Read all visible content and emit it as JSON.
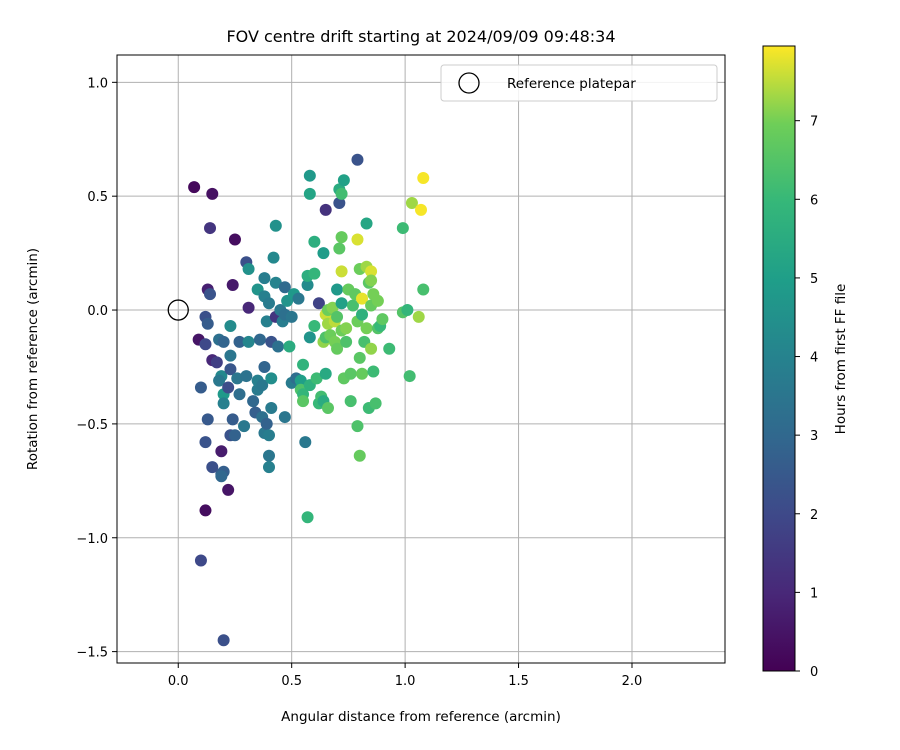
{
  "chart_data": {
    "type": "scatter",
    "title": "FOV centre drift starting at 2024/09/09 09:48:34",
    "xlabel": "Angular distance from reference (arcmin)",
    "ylabel": "Rotation from reference (arcmin)",
    "xlim": [
      -0.27,
      2.41
    ],
    "ylim": [
      -1.55,
      1.12
    ],
    "xticks": [
      0.0,
      0.5,
      1.0,
      1.5,
      2.0
    ],
    "xtick_labels": [
      "0.0",
      "0.5",
      "1.0",
      "1.5",
      "2.0"
    ],
    "yticks": [
      -1.5,
      -1.0,
      -0.5,
      0.0,
      0.5,
      1.0
    ],
    "ytick_labels": [
      "−1.5",
      "−1.0",
      "−0.5",
      "0.0",
      "0.5",
      "1.0"
    ],
    "grid": true,
    "legend": {
      "position": "top-right",
      "entries": [
        "Reference platepar"
      ]
    },
    "reference_point": {
      "x": 0.0,
      "y": 0.0,
      "marker": "open-circle"
    },
    "colorbar": {
      "label": "Hours from first FF file",
      "colormap": "viridis",
      "range": [
        0,
        7.95
      ],
      "ticks": [
        0,
        1,
        2,
        3,
        4,
        5,
        6,
        7
      ],
      "tick_labels": [
        "0",
        "1",
        "2",
        "3",
        "4",
        "5",
        "6",
        "7"
      ]
    },
    "points": [
      {
        "x": 0.07,
        "y": 0.54,
        "c": 0.2
      },
      {
        "x": 0.15,
        "y": 0.51,
        "c": 0.4
      },
      {
        "x": 0.14,
        "y": 0.36,
        "c": 1.4
      },
      {
        "x": 0.25,
        "y": 0.31,
        "c": 0.3
      },
      {
        "x": 0.24,
        "y": 0.11,
        "c": 0.6
      },
      {
        "x": 0.13,
        "y": 0.09,
        "c": 0.8
      },
      {
        "x": 0.14,
        "y": 0.07,
        "c": 2.3
      },
      {
        "x": 0.12,
        "y": -0.03,
        "c": 2.2
      },
      {
        "x": 0.13,
        "y": -0.06,
        "c": 2.6
      },
      {
        "x": 0.09,
        "y": -0.13,
        "c": 0.5
      },
      {
        "x": 0.12,
        "y": -0.15,
        "c": 2.0
      },
      {
        "x": 0.15,
        "y": -0.22,
        "c": 1.0
      },
      {
        "x": 0.17,
        "y": -0.23,
        "c": 1.7
      },
      {
        "x": 0.1,
        "y": -0.34,
        "c": 2.6
      },
      {
        "x": 0.13,
        "y": -0.48,
        "c": 2.5
      },
      {
        "x": 0.12,
        "y": -0.58,
        "c": 2.3
      },
      {
        "x": 0.15,
        "y": -0.69,
        "c": 2.2
      },
      {
        "x": 0.19,
        "y": -0.62,
        "c": 0.7
      },
      {
        "x": 0.19,
        "y": -0.72,
        "c": 2.6
      },
      {
        "x": 0.2,
        "y": -0.71,
        "c": 2.7
      },
      {
        "x": 0.19,
        "y": -0.73,
        "c": 3.0
      },
      {
        "x": 0.22,
        "y": -0.79,
        "c": 0.5
      },
      {
        "x": 0.12,
        "y": -0.88,
        "c": 0.3
      },
      {
        "x": 0.1,
        "y": -1.1,
        "c": 2.0
      },
      {
        "x": 0.2,
        "y": -1.45,
        "c": 2.2
      },
      {
        "x": 0.18,
        "y": -0.13,
        "c": 3.3
      },
      {
        "x": 0.2,
        "y": -0.14,
        "c": 2.9
      },
      {
        "x": 0.19,
        "y": -0.29,
        "c": 4.2
      },
      {
        "x": 0.18,
        "y": -0.31,
        "c": 3.6
      },
      {
        "x": 0.2,
        "y": -0.37,
        "c": 4.8
      },
      {
        "x": 0.2,
        "y": -0.41,
        "c": 3.9
      },
      {
        "x": 0.23,
        "y": -0.2,
        "c": 3.5
      },
      {
        "x": 0.23,
        "y": -0.26,
        "c": 2.4
      },
      {
        "x": 0.22,
        "y": -0.34,
        "c": 2.1
      },
      {
        "x": 0.24,
        "y": -0.48,
        "c": 2.6
      },
      {
        "x": 0.23,
        "y": -0.55,
        "c": 2.3
      },
      {
        "x": 0.25,
        "y": -0.55,
        "c": 2.8
      },
      {
        "x": 0.23,
        "y": -0.07,
        "c": 4.3
      },
      {
        "x": 0.27,
        "y": -0.14,
        "c": 2.8
      },
      {
        "x": 0.26,
        "y": -0.3,
        "c": 3.5
      },
      {
        "x": 0.27,
        "y": -0.37,
        "c": 3.2
      },
      {
        "x": 0.29,
        "y": -0.51,
        "c": 3.6
      },
      {
        "x": 0.3,
        "y": 0.21,
        "c": 2.2
      },
      {
        "x": 0.31,
        "y": 0.18,
        "c": 4.5
      },
      {
        "x": 0.31,
        "y": 0.01,
        "c": 1.0
      },
      {
        "x": 0.31,
        "y": -0.14,
        "c": 4.1
      },
      {
        "x": 0.3,
        "y": -0.29,
        "c": 3.4
      },
      {
        "x": 0.33,
        "y": -0.4,
        "c": 3.0
      },
      {
        "x": 0.35,
        "y": -0.35,
        "c": 3.7
      },
      {
        "x": 0.34,
        "y": -0.45,
        "c": 2.7
      },
      {
        "x": 0.35,
        "y": 0.09,
        "c": 4.6
      },
      {
        "x": 0.36,
        "y": -0.13,
        "c": 3.0
      },
      {
        "x": 0.35,
        "y": -0.31,
        "c": 3.9
      },
      {
        "x": 0.37,
        "y": -0.33,
        "c": 3.6
      },
      {
        "x": 0.37,
        "y": -0.47,
        "c": 3.3
      },
      {
        "x": 0.38,
        "y": -0.54,
        "c": 3.6
      },
      {
        "x": 0.38,
        "y": 0.14,
        "c": 3.8
      },
      {
        "x": 0.38,
        "y": 0.06,
        "c": 3.9
      },
      {
        "x": 0.39,
        "y": -0.05,
        "c": 3.9
      },
      {
        "x": 0.38,
        "y": -0.25,
        "c": 2.9
      },
      {
        "x": 0.39,
        "y": -0.5,
        "c": 2.8
      },
      {
        "x": 0.4,
        "y": -0.64,
        "c": 3.5
      },
      {
        "x": 0.4,
        "y": -0.69,
        "c": 3.9
      },
      {
        "x": 0.4,
        "y": -0.55,
        "c": 3.8
      },
      {
        "x": 0.4,
        "y": 0.03,
        "c": 3.7
      },
      {
        "x": 0.41,
        "y": -0.14,
        "c": 2.3
      },
      {
        "x": 0.41,
        "y": -0.3,
        "c": 4.4
      },
      {
        "x": 0.41,
        "y": -0.43,
        "c": 3.7
      },
      {
        "x": 0.43,
        "y": 0.37,
        "c": 4.5
      },
      {
        "x": 0.42,
        "y": 0.23,
        "c": 4.2
      },
      {
        "x": 0.43,
        "y": 0.12,
        "c": 4.0
      },
      {
        "x": 0.43,
        "y": -0.03,
        "c": 1.4
      },
      {
        "x": 0.45,
        "y": 0.0,
        "c": 3.6
      },
      {
        "x": 0.44,
        "y": -0.16,
        "c": 3.3
      },
      {
        "x": 0.46,
        "y": -0.05,
        "c": 3.8
      },
      {
        "x": 0.47,
        "y": 0.1,
        "c": 3.1
      },
      {
        "x": 0.48,
        "y": 0.04,
        "c": 4.6
      },
      {
        "x": 0.47,
        "y": -0.02,
        "c": 3.3
      },
      {
        "x": 0.49,
        "y": -0.16,
        "c": 5.5
      },
      {
        "x": 0.47,
        "y": -0.47,
        "c": 3.5
      },
      {
        "x": 0.5,
        "y": -0.32,
        "c": 3.7
      },
      {
        "x": 0.5,
        "y": -0.03,
        "c": 3.5
      },
      {
        "x": 0.51,
        "y": 0.07,
        "c": 4.8
      },
      {
        "x": 0.52,
        "y": -0.3,
        "c": 3.2
      },
      {
        "x": 0.53,
        "y": 0.05,
        "c": 3.6
      },
      {
        "x": 0.54,
        "y": -0.31,
        "c": 5.0
      },
      {
        "x": 0.55,
        "y": -0.24,
        "c": 5.8
      },
      {
        "x": 0.54,
        "y": -0.35,
        "c": 6.4
      },
      {
        "x": 0.55,
        "y": -0.37,
        "c": 5.9
      },
      {
        "x": 0.55,
        "y": -0.4,
        "c": 6.6
      },
      {
        "x": 0.56,
        "y": -0.58,
        "c": 3.6
      },
      {
        "x": 0.57,
        "y": 0.11,
        "c": 4.3
      },
      {
        "x": 0.57,
        "y": 0.15,
        "c": 5.6
      },
      {
        "x": 0.58,
        "y": -0.12,
        "c": 4.6
      },
      {
        "x": 0.58,
        "y": -0.33,
        "c": 5.7
      },
      {
        "x": 0.57,
        "y": -0.91,
        "c": 5.9
      },
      {
        "x": 0.58,
        "y": 0.51,
        "c": 5.2
      },
      {
        "x": 0.58,
        "y": 0.59,
        "c": 4.8
      },
      {
        "x": 0.6,
        "y": 0.3,
        "c": 5.6
      },
      {
        "x": 0.6,
        "y": 0.16,
        "c": 5.9
      },
      {
        "x": 0.6,
        "y": -0.07,
        "c": 6.0
      },
      {
        "x": 0.61,
        "y": -0.3,
        "c": 6.1
      },
      {
        "x": 0.62,
        "y": 0.03,
        "c": 1.8
      },
      {
        "x": 0.62,
        "y": -0.41,
        "c": 6.0
      },
      {
        "x": 0.63,
        "y": -0.38,
        "c": 6.2
      },
      {
        "x": 0.64,
        "y": -0.4,
        "c": 5.5
      },
      {
        "x": 0.64,
        "y": 0.25,
        "c": 4.9
      },
      {
        "x": 0.65,
        "y": 0.44,
        "c": 1.3
      },
      {
        "x": 0.64,
        "y": -0.14,
        "c": 7.2
      },
      {
        "x": 0.65,
        "y": -0.12,
        "c": 6.4
      },
      {
        "x": 0.65,
        "y": -0.28,
        "c": 5.4
      },
      {
        "x": 0.65,
        "y": -0.02,
        "c": 7.6
      },
      {
        "x": 0.66,
        "y": 0.0,
        "c": 6.9
      },
      {
        "x": 0.66,
        "y": -0.06,
        "c": 7.3
      },
      {
        "x": 0.66,
        "y": -0.43,
        "c": 6.6
      },
      {
        "x": 0.67,
        "y": -0.11,
        "c": 6.9
      },
      {
        "x": 0.68,
        "y": 0.01,
        "c": 7.1
      },
      {
        "x": 0.69,
        "y": -0.05,
        "c": 7.5
      },
      {
        "x": 0.69,
        "y": -0.14,
        "c": 7.0
      },
      {
        "x": 0.7,
        "y": 0.09,
        "c": 4.8
      },
      {
        "x": 0.7,
        "y": -0.03,
        "c": 6.5
      },
      {
        "x": 0.7,
        "y": -0.17,
        "c": 6.8
      },
      {
        "x": 0.71,
        "y": 0.47,
        "c": 2.3
      },
      {
        "x": 0.71,
        "y": 0.53,
        "c": 5.5
      },
      {
        "x": 0.71,
        "y": 0.27,
        "c": 6.6
      },
      {
        "x": 0.72,
        "y": 0.51,
        "c": 6.2
      },
      {
        "x": 0.72,
        "y": 0.32,
        "c": 6.8
      },
      {
        "x": 0.72,
        "y": 0.17,
        "c": 7.6
      },
      {
        "x": 0.72,
        "y": 0.03,
        "c": 5.1
      },
      {
        "x": 0.72,
        "y": -0.09,
        "c": 6.9
      },
      {
        "x": 0.73,
        "y": -0.3,
        "c": 6.7
      },
      {
        "x": 0.73,
        "y": 0.57,
        "c": 5.1
      },
      {
        "x": 0.74,
        "y": -0.08,
        "c": 7.1
      },
      {
        "x": 0.74,
        "y": -0.14,
        "c": 6.4
      },
      {
        "x": 0.75,
        "y": 0.09,
        "c": 6.8
      },
      {
        "x": 0.76,
        "y": -0.28,
        "c": 6.6
      },
      {
        "x": 0.76,
        "y": -0.4,
        "c": 6.3
      },
      {
        "x": 0.77,
        "y": 0.02,
        "c": 6.3
      },
      {
        "x": 0.78,
        "y": 0.07,
        "c": 6.7
      },
      {
        "x": 0.79,
        "y": 0.66,
        "c": 2.3
      },
      {
        "x": 0.79,
        "y": 0.31,
        "c": 7.7
      },
      {
        "x": 0.79,
        "y": -0.05,
        "c": 6.9
      },
      {
        "x": 0.8,
        "y": -0.21,
        "c": 6.6
      },
      {
        "x": 0.79,
        "y": -0.51,
        "c": 6.4
      },
      {
        "x": 0.8,
        "y": -0.64,
        "c": 6.8
      },
      {
        "x": 0.8,
        "y": 0.18,
        "c": 6.9
      },
      {
        "x": 0.81,
        "y": 0.05,
        "c": 7.8
      },
      {
        "x": 0.81,
        "y": -0.02,
        "c": 5.7
      },
      {
        "x": 0.81,
        "y": -0.28,
        "c": 6.8
      },
      {
        "x": 0.82,
        "y": -0.14,
        "c": 6.3
      },
      {
        "x": 0.83,
        "y": 0.38,
        "c": 5.3
      },
      {
        "x": 0.83,
        "y": 0.19,
        "c": 7.3
      },
      {
        "x": 0.83,
        "y": -0.08,
        "c": 7.0
      },
      {
        "x": 0.84,
        "y": 0.12,
        "c": 6.6
      },
      {
        "x": 0.84,
        "y": -0.43,
        "c": 6.1
      },
      {
        "x": 0.85,
        "y": 0.17,
        "c": 7.7
      },
      {
        "x": 0.85,
        "y": 0.13,
        "c": 7.1
      },
      {
        "x": 0.85,
        "y": 0.02,
        "c": 6.8
      },
      {
        "x": 0.85,
        "y": -0.17,
        "c": 7.2
      },
      {
        "x": 0.86,
        "y": -0.27,
        "c": 6.1
      },
      {
        "x": 0.86,
        "y": 0.07,
        "c": 7.0
      },
      {
        "x": 0.87,
        "y": -0.41,
        "c": 6.3
      },
      {
        "x": 0.88,
        "y": 0.04,
        "c": 7.0
      },
      {
        "x": 0.88,
        "y": -0.08,
        "c": 6.5
      },
      {
        "x": 0.89,
        "y": -0.07,
        "c": 6.0
      },
      {
        "x": 0.9,
        "y": -0.04,
        "c": 6.7
      },
      {
        "x": 0.93,
        "y": -0.17,
        "c": 6.1
      },
      {
        "x": 0.99,
        "y": 0.36,
        "c": 6.1
      },
      {
        "x": 0.99,
        "y": -0.01,
        "c": 6.5
      },
      {
        "x": 1.01,
        "y": 0.0,
        "c": 5.9
      },
      {
        "x": 1.02,
        "y": -0.29,
        "c": 6.2
      },
      {
        "x": 1.03,
        "y": 0.47,
        "c": 7.3
      },
      {
        "x": 1.06,
        "y": -0.03,
        "c": 7.3
      },
      {
        "x": 1.07,
        "y": 0.44,
        "c": 7.9
      },
      {
        "x": 1.08,
        "y": 0.58,
        "c": 7.9
      },
      {
        "x": 1.08,
        "y": 0.09,
        "c": 6.3
      }
    ]
  }
}
